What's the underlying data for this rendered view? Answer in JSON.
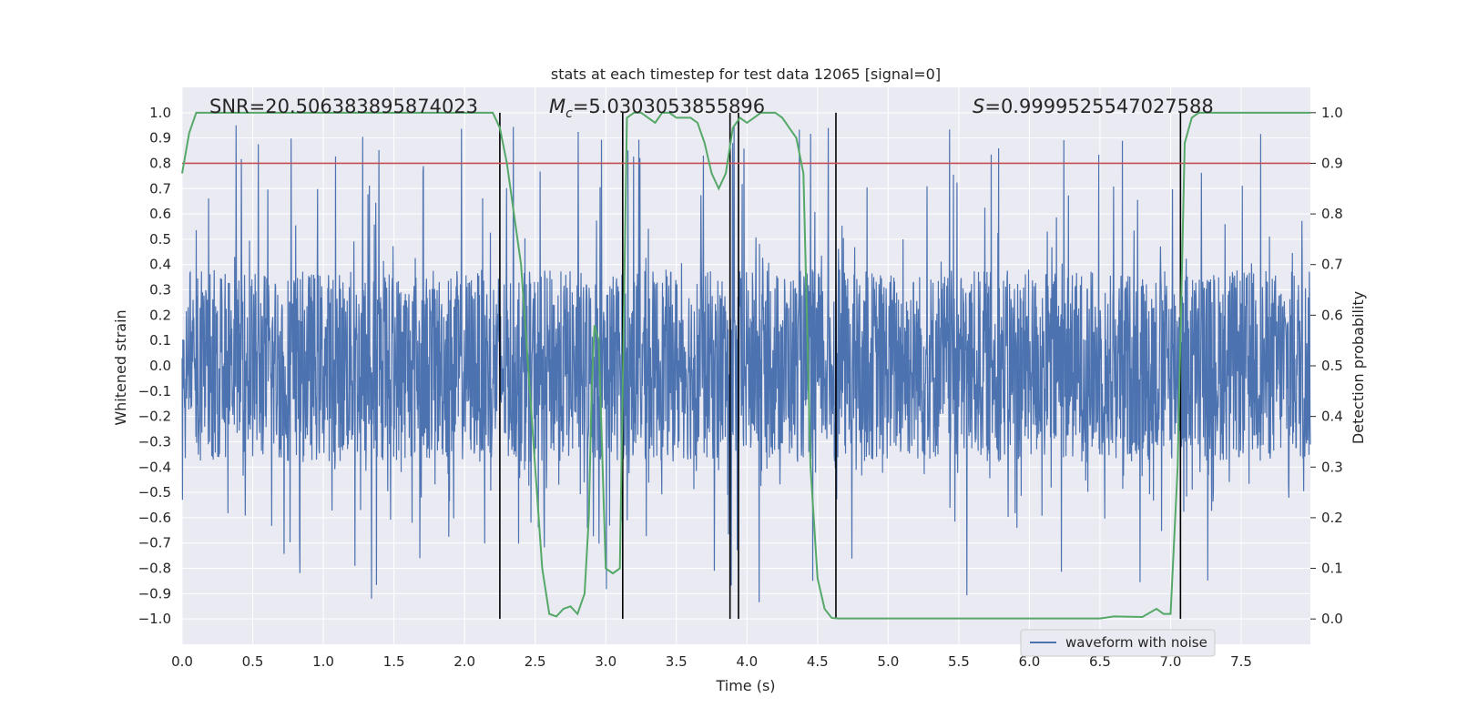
{
  "chart_data": {
    "type": "line",
    "title": "stats at each timestep for test data 12065 [signal=0]",
    "xlabel": "Time (s)",
    "ylabel": "Whitened strain",
    "y2label": "Detection probability",
    "xlim": [
      0.0,
      7.99
    ],
    "ylim": [
      -1.1,
      1.1
    ],
    "y2lim": [
      -0.05,
      1.05
    ],
    "x_ticks": [
      0.0,
      0.5,
      1.0,
      1.5,
      2.0,
      2.5,
      3.0,
      3.5,
      4.0,
      4.5,
      5.0,
      5.5,
      6.0,
      6.5,
      7.0,
      7.5
    ],
    "x_tick_labels": [
      "0.0",
      "0.5",
      "1.0",
      "1.5",
      "2.0",
      "2.5",
      "3.0",
      "3.5",
      "4.0",
      "4.5",
      "5.0",
      "5.5",
      "6.0",
      "6.5",
      "7.0",
      "7.5"
    ],
    "y_ticks": [
      1.0,
      0.9,
      0.8,
      0.7,
      0.6,
      0.5,
      0.4,
      0.3,
      0.2,
      0.1,
      0.0,
      -0.1,
      -0.2,
      -0.3,
      -0.4,
      -0.5,
      -0.6,
      -0.7,
      -0.8,
      -0.9,
      -1.0
    ],
    "y_tick_labels": [
      "1.0",
      "0.9",
      "0.8",
      "0.7",
      "0.6",
      "0.5",
      "0.4",
      "0.3",
      "0.2",
      "0.1",
      "0.0",
      "−0.1",
      "−0.2",
      "−0.3",
      "−0.4",
      "−0.5",
      "−0.6",
      "−0.7",
      "−0.8",
      "−0.9",
      "−1.0"
    ],
    "y2_ticks": [
      1.0,
      0.9,
      0.8,
      0.7,
      0.6,
      0.5,
      0.4,
      0.3,
      0.2,
      0.1,
      0.0
    ],
    "y2_tick_labels": [
      "1.0",
      "0.9",
      "0.8",
      "0.7",
      "0.6",
      "0.5",
      "0.4",
      "0.3",
      "0.2",
      "0.1",
      "0.0"
    ],
    "annotations": {
      "snr": "SNR=20.506383895874023",
      "mc_symbol": "M",
      "mc_sub": "c",
      "mc_value": "=5.0303053855896",
      "s_symbol": "S",
      "s_value": "=0.9999525547027588"
    },
    "legend": {
      "label": "waveform with noise",
      "position": "lower-right"
    },
    "series": [
      {
        "name": "waveform with noise",
        "axis": "left",
        "color": "#4c72b0",
        "style": "noise",
        "typical_envelope": [
          -0.38,
          0.38
        ],
        "extreme_envelope": [
          -0.99,
          0.95
        ]
      },
      {
        "name": "detection probability",
        "axis": "right",
        "color": "#55a868",
        "x": [
          0.0,
          0.05,
          0.1,
          0.5,
          1.0,
          1.5,
          2.0,
          2.2,
          2.25,
          2.3,
          2.35,
          2.4,
          2.45,
          2.5,
          2.55,
          2.6,
          2.65,
          2.7,
          2.75,
          2.8,
          2.85,
          2.88,
          2.9,
          2.92,
          2.95,
          3.0,
          3.05,
          3.1,
          3.15,
          3.2,
          3.25,
          3.3,
          3.35,
          3.4,
          3.45,
          3.5,
          3.55,
          3.6,
          3.65,
          3.7,
          3.75,
          3.8,
          3.85,
          3.9,
          3.95,
          4.0,
          4.05,
          4.1,
          4.15,
          4.2,
          4.25,
          4.3,
          4.35,
          4.4,
          4.45,
          4.5,
          4.55,
          4.6,
          4.65,
          4.7,
          4.75,
          4.8,
          4.9,
          5.0,
          5.2,
          5.4,
          5.5,
          6.0,
          6.2,
          6.5,
          6.6,
          6.8,
          6.9,
          6.95,
          7.0,
          7.05,
          7.1,
          7.15,
          7.2,
          7.25,
          7.3,
          7.5,
          7.99
        ],
        "y": [
          0.88,
          0.96,
          1.0,
          1.0,
          1.0,
          1.0,
          1.0,
          1.0,
          0.97,
          0.9,
          0.8,
          0.7,
          0.5,
          0.3,
          0.1,
          0.01,
          0.005,
          0.02,
          0.025,
          0.01,
          0.05,
          0.2,
          0.45,
          0.58,
          0.55,
          0.1,
          0.09,
          0.1,
          0.99,
          1.0,
          1.0,
          0.99,
          0.98,
          1.0,
          1.0,
          0.99,
          0.99,
          0.99,
          0.98,
          0.94,
          0.88,
          0.85,
          0.88,
          0.97,
          0.99,
          0.98,
          0.99,
          1.0,
          1.0,
          1.0,
          0.99,
          0.97,
          0.95,
          0.88,
          0.3,
          0.08,
          0.02,
          0.002,
          0.001,
          0.001,
          0.001,
          0.001,
          0.001,
          0.001,
          0.001,
          0.001,
          0.001,
          0.001,
          0.001,
          0.001,
          0.005,
          0.004,
          0.02,
          0.01,
          0.01,
          0.3,
          0.94,
          0.99,
          1.0,
          1.0,
          1.0,
          1.0,
          1.0
        ]
      },
      {
        "name": "threshold",
        "axis": "right",
        "color": "#c44e52",
        "value": 0.9
      }
    ],
    "event_markers": [
      2.25,
      3.12,
      3.88,
      3.94,
      4.63,
      7.07
    ]
  }
}
